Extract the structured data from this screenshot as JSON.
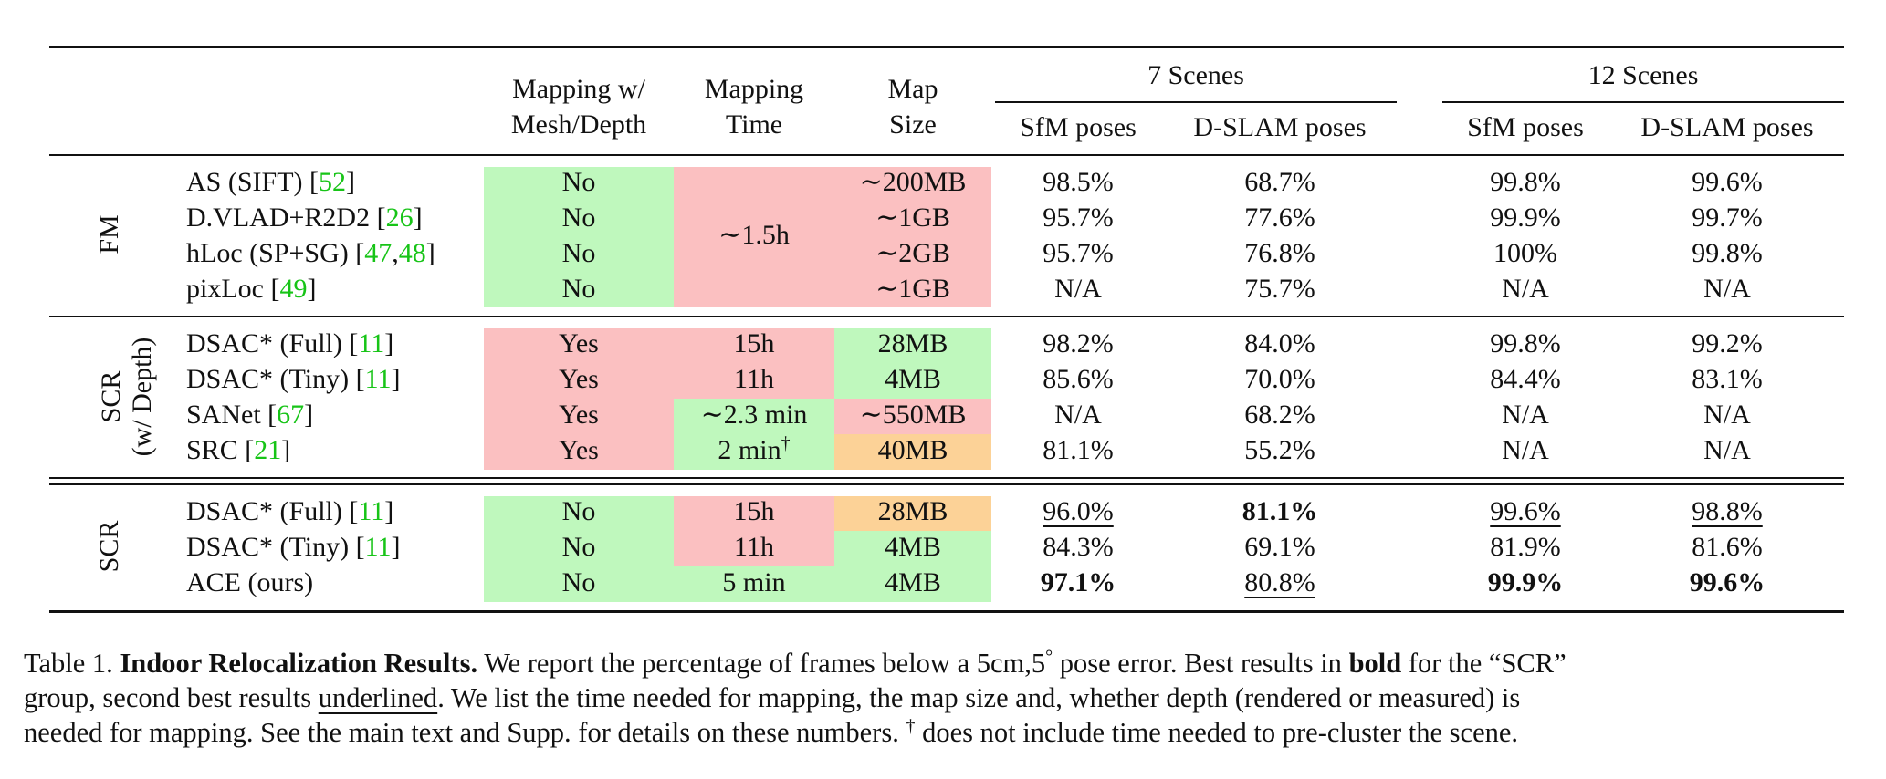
{
  "header": {
    "col_mapping_w": [
      "Mapping w/",
      "Mesh/Depth"
    ],
    "col_mapping_time": [
      "Mapping",
      "Time"
    ],
    "col_map_size": [
      "Map",
      "Size"
    ],
    "group_7": "7 Scenes",
    "group_12": "12 Scenes",
    "sfm": "SfM poses",
    "dslam": "D-SLAM poses"
  },
  "groups": {
    "fm": "FM",
    "scr_depth_1": "SCR",
    "scr_depth_2": "(w/ Depth)",
    "scr": "SCR"
  },
  "fm_rows": [
    {
      "method": "AS (SIFT) [",
      "cite": "52",
      "end": "]",
      "mapping_w": "No",
      "map_size": "∼200MB",
      "s7_sfm": "98.5%",
      "s7_dslam": "68.7%",
      "s12_sfm": "99.8%",
      "s12_dslam": "99.6%"
    },
    {
      "method": "D.VLAD+R2D2 [",
      "cite": "26",
      "end": "]",
      "mapping_w": "No",
      "map_size": "∼1GB",
      "s7_sfm": "95.7%",
      "s7_dslam": "77.6%",
      "s12_sfm": "99.9%",
      "s12_dslam": "99.7%"
    },
    {
      "method": "hLoc (SP+SG) [",
      "cite": "47",
      "sep": ",",
      "cite2": "48",
      "end": "]",
      "mapping_w": "No",
      "map_size": "∼2GB",
      "s7_sfm": "95.7%",
      "s7_dslam": "76.8%",
      "s12_sfm": "100%",
      "s12_dslam": "99.8%"
    },
    {
      "method": "pixLoc [",
      "cite": "49",
      "end": "]",
      "mapping_w": "No",
      "map_size": "∼1GB",
      "s7_sfm": "N/A",
      "s7_dslam": "75.7%",
      "s12_sfm": "N/A",
      "s12_dslam": "N/A"
    }
  ],
  "fm_mapping_time": "∼1.5h",
  "scrd_rows": [
    {
      "method": "DSAC* (Full) [",
      "cite": "11",
      "end": "]",
      "mapping_w": "Yes",
      "mapping_time": "15h",
      "map_size": "28MB",
      "s7_sfm": "98.2%",
      "s7_dslam": "84.0%",
      "s12_sfm": "99.8%",
      "s12_dslam": "99.2%"
    },
    {
      "method": "DSAC* (Tiny) [",
      "cite": "11",
      "end": "]",
      "mapping_w": "Yes",
      "mapping_time": "11h",
      "map_size": "4MB",
      "s7_sfm": "85.6%",
      "s7_dslam": "70.0%",
      "s12_sfm": "84.4%",
      "s12_dslam": "83.1%"
    },
    {
      "method": "SANet [",
      "cite": "67",
      "end": "]",
      "mapping_w": "Yes",
      "mapping_time": "∼2.3 min",
      "map_size": "∼550MB",
      "s7_sfm": "N/A",
      "s7_dslam": "68.2%",
      "s12_sfm": "N/A",
      "s12_dslam": "N/A"
    },
    {
      "method": "SRC [",
      "cite": "21",
      "end": "]",
      "mapping_w": "Yes",
      "mapping_time": "2 min",
      "dagger": "†",
      "map_size": "40MB",
      "s7_sfm": "81.1%",
      "s7_dslam": "55.2%",
      "s12_sfm": "N/A",
      "s12_dslam": "N/A"
    }
  ],
  "scr_rows": [
    {
      "method": "DSAC* (Full) [",
      "cite": "11",
      "end": "]",
      "mapping_w": "No",
      "mapping_time": "15h",
      "map_size": "28MB",
      "s7_sfm": "96.0%",
      "s7_dslam": "81.1%",
      "s12_sfm": "99.6%",
      "s12_dslam": "98.8%"
    },
    {
      "method": "DSAC* (Tiny) [",
      "cite": "11",
      "end": "]",
      "mapping_w": "No",
      "mapping_time": "11h",
      "map_size": "4MB",
      "s7_sfm": "84.3%",
      "s7_dslam": "69.1%",
      "s12_sfm": "81.9%",
      "s12_dslam": "81.6%"
    },
    {
      "method": "ACE (ours)",
      "mapping_w": "No",
      "mapping_time": "5 min",
      "map_size": "4MB",
      "s7_sfm": "97.1%",
      "s7_dslam": "80.8%",
      "s12_sfm": "99.9%",
      "s12_dslam": "99.6%"
    }
  ],
  "colors": {
    "green": "#bff8bd",
    "red": "#fbc0c1",
    "orange": "#fcd297",
    "citation": "#17c417"
  },
  "caption": {
    "l1_a": "Table 1. ",
    "l1_b": "Indoor Relocalization Results.",
    "l1_c": " We report the percentage of frames below a 5cm,5",
    "deg": "°",
    "l1_d": " pose error. Best results in ",
    "l1_e": "bold",
    "l1_f": " for the “SCR”",
    "l2_a": "group, second best results ",
    "l2_b": "underlined",
    "l2_c": ".  We list the time needed for mapping, the map size and, whether depth (rendered or measured) is",
    "l3_a": "needed for mapping. See the main text and Supp. for details on these numbers. ",
    "dagger": "†",
    "l3_b": " does not include time needed to pre-cluster the scene."
  }
}
